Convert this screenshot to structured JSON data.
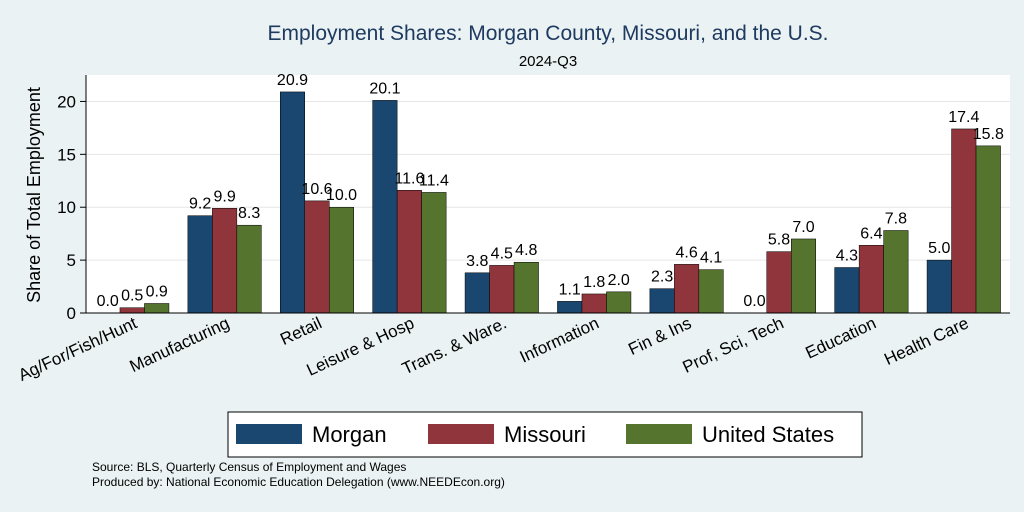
{
  "chart_data": {
    "type": "bar",
    "title": "Employment Shares: Morgan County, Missouri, and the U.S.",
    "subtitle": "2024-Q3",
    "ylabel": "Share of Total Employment",
    "xlabel": "",
    "ylim": [
      0,
      22.5
    ],
    "yticks": [
      0,
      5,
      10,
      15,
      20
    ],
    "grid": true,
    "legend_position": "bottom",
    "categories": [
      "Ag/For/Fish/Hunt",
      "Manufacturing",
      "Retail",
      "Leisure & Hosp",
      "Trans. & Ware.",
      "Information",
      "Fin & Ins",
      "Prof, Sci, Tech",
      "Education",
      "Health Care"
    ],
    "series": [
      {
        "name": "Morgan",
        "color": "#1a476f",
        "values": [
          0.0,
          9.2,
          20.9,
          20.1,
          3.8,
          1.1,
          2.3,
          0.0,
          4.3,
          5.0
        ]
      },
      {
        "name": "Missouri",
        "color": "#90353b",
        "values": [
          0.5,
          9.9,
          10.6,
          11.6,
          4.5,
          1.8,
          4.6,
          5.8,
          6.4,
          17.4
        ]
      },
      {
        "name": "United States",
        "color": "#55752f",
        "values": [
          0.9,
          8.3,
          10.0,
          11.4,
          4.8,
          2.0,
          4.1,
          7.0,
          7.8,
          15.8
        ]
      }
    ]
  },
  "notes": {
    "source": "Source: BLS, Quarterly Census of Employment and Wages",
    "produced": "Produced by: National Economic Education Delegation (www.NEEDEcon.org)"
  }
}
